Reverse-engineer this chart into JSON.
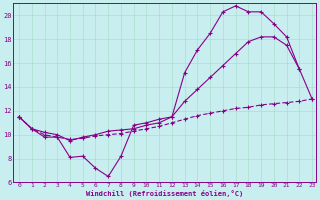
{
  "xlabel": "Windchill (Refroidissement éolien,°C)",
  "bg_color": "#c8eef0",
  "line_color": "#880088",
  "grid_color": "#aaddcc",
  "xlim": [
    -0.5,
    23.3
  ],
  "ylim": [
    6,
    21
  ],
  "xticks": [
    0,
    1,
    2,
    3,
    4,
    5,
    6,
    7,
    8,
    9,
    10,
    11,
    12,
    13,
    14,
    15,
    16,
    17,
    18,
    19,
    20,
    21,
    22,
    23
  ],
  "yticks": [
    6,
    8,
    10,
    12,
    14,
    16,
    18,
    20
  ],
  "line1_x": [
    0,
    1,
    2,
    3,
    4,
    5,
    6,
    7,
    8,
    9,
    10,
    11,
    12,
    13,
    14,
    15,
    16,
    17,
    18,
    19,
    20,
    21,
    22
  ],
  "line1_y": [
    11.5,
    10.5,
    9.8,
    9.8,
    8.1,
    8.2,
    7.2,
    6.5,
    8.2,
    10.8,
    11.0,
    11.3,
    11.5,
    15.2,
    17.1,
    18.5,
    20.3,
    20.8,
    20.3,
    20.3,
    19.3,
    18.2,
    15.5
  ],
  "line2_x": [
    0,
    1,
    2,
    3,
    4,
    5,
    6,
    7,
    8,
    9,
    10,
    11,
    12,
    13,
    14,
    15,
    16,
    17,
    18,
    19,
    20,
    21,
    22,
    23
  ],
  "line2_y": [
    11.5,
    10.5,
    10.2,
    10.0,
    9.5,
    9.8,
    10.0,
    10.3,
    10.4,
    10.5,
    10.8,
    11.0,
    11.5,
    12.8,
    13.8,
    14.8,
    15.8,
    16.8,
    17.8,
    18.2,
    18.2,
    17.5,
    15.5,
    13.0
  ],
  "line3_x": [
    0,
    1,
    2,
    3,
    4,
    5,
    6,
    7,
    8,
    9,
    10,
    11,
    12,
    13,
    14,
    15,
    16,
    17,
    18,
    19,
    20,
    21,
    22,
    23
  ],
  "line3_y": [
    11.5,
    10.5,
    10.0,
    9.8,
    9.6,
    9.7,
    9.9,
    10.0,
    10.1,
    10.3,
    10.5,
    10.7,
    11.0,
    11.3,
    11.6,
    11.8,
    12.0,
    12.2,
    12.3,
    12.5,
    12.6,
    12.7,
    12.8,
    13.0
  ]
}
